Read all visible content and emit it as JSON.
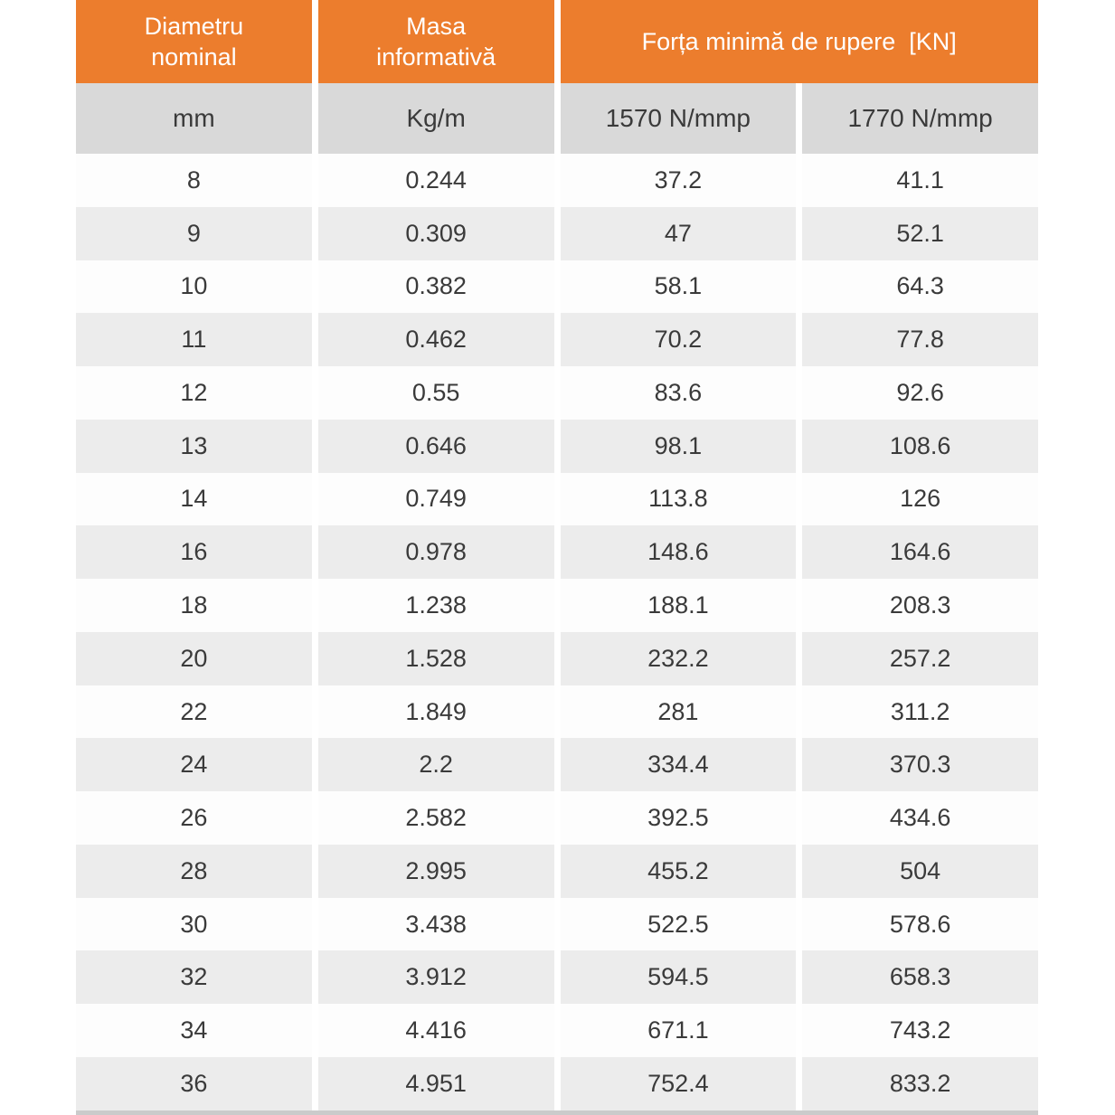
{
  "chart_data": {
    "type": "table",
    "title": "",
    "header_groups": [
      {
        "title": "Diametru nominal",
        "subs": [
          "mm"
        ]
      },
      {
        "title": "Masa informativă",
        "subs": [
          "Kg/m"
        ]
      },
      {
        "title": "Forța minimă de rupere  [KN]",
        "subs": [
          "1570 N/mmp",
          "1770 N/mmp"
        ]
      }
    ],
    "rows": [
      [
        "8",
        "0.244",
        "37.2",
        "41.1"
      ],
      [
        "9",
        "0.309",
        "47",
        "52.1"
      ],
      [
        "10",
        "0.382",
        "58.1",
        "64.3"
      ],
      [
        "11",
        "0.462",
        "70.2",
        "77.8"
      ],
      [
        "12",
        "0.55",
        "83.6",
        "92.6"
      ],
      [
        "13",
        "0.646",
        "98.1",
        "108.6"
      ],
      [
        "14",
        "0.749",
        "113.8",
        "126"
      ],
      [
        "16",
        "0.978",
        "148.6",
        "164.6"
      ],
      [
        "18",
        "1.238",
        "188.1",
        "208.3"
      ],
      [
        "20",
        "1.528",
        "232.2",
        "257.2"
      ],
      [
        "22",
        "1.849",
        "281",
        "311.2"
      ],
      [
        "24",
        "2.2",
        "334.4",
        "370.3"
      ],
      [
        "26",
        "2.582",
        "392.5",
        "434.6"
      ],
      [
        "28",
        "2.995",
        "455.2",
        "504"
      ],
      [
        "30",
        "3.438",
        "522.5",
        "578.6"
      ],
      [
        "32",
        "3.912",
        "594.5",
        "658.3"
      ],
      [
        "34",
        "4.416",
        "671.1",
        "743.2"
      ],
      [
        "36",
        "4.951",
        "752.4",
        "833.2"
      ]
    ]
  },
  "colors": {
    "header_bg": "#EC7D2D",
    "header_text": "#FFFFFF",
    "subheader_bg": "#D9D9D9",
    "row_bg": "#FDFDFD",
    "row_alt_bg": "#ECECEC",
    "text": "#3A3A3A",
    "bottom_bar": "#CBCBCB"
  }
}
